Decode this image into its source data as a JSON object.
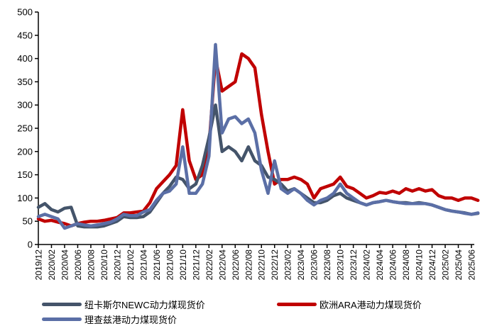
{
  "chart_data": {
    "type": "line",
    "title": "",
    "xlabel": "",
    "ylabel": "",
    "ylim": [
      0,
      500
    ],
    "yticks": [
      0,
      50,
      100,
      150,
      200,
      250,
      300,
      350,
      400,
      450,
      500
    ],
    "grid": false,
    "legend_placement": "bottom",
    "x": [
      "2019/12",
      "2020/01",
      "2020/02",
      "2020/03",
      "2020/04",
      "2020/05",
      "2020/06",
      "2020/07",
      "2020/08",
      "2020/09",
      "2020/10",
      "2020/11",
      "2020/12",
      "2021/01",
      "2021/02",
      "2021/03",
      "2021/04",
      "2021/05",
      "2021/06",
      "2021/07",
      "2021/08",
      "2021/09",
      "2021/10",
      "2021/11",
      "2021/12",
      "2022/01",
      "2022/02",
      "2022/03",
      "2022/04",
      "2022/05",
      "2022/06",
      "2022/07",
      "2022/08",
      "2022/09",
      "2022/10",
      "2022/11",
      "2022/12",
      "2023/01",
      "2023/02",
      "2023/03",
      "2023/04",
      "2023/05",
      "2023/06",
      "2023/07",
      "2023/08",
      "2023/09",
      "2023/10",
      "2023/11",
      "2023/12",
      "2024/01",
      "2024/02",
      "2024/03",
      "2024/04",
      "2024/05",
      "2024/06",
      "2024/07",
      "2024/08",
      "2024/09",
      "2024/10",
      "2024/11",
      "2024/12",
      "2025/01",
      "2025/02",
      "2025/03",
      "2025/04",
      "2025/05",
      "2025/06",
      "2025/07"
    ],
    "xtick_labels": [
      "2019/12",
      "2020/02",
      "2020/04",
      "2020/06",
      "2020/08",
      "2020/10",
      "2020/12",
      "2021/02",
      "2021/04",
      "2021/06",
      "2021/08",
      "2021/10",
      "2021/12",
      "2022/02",
      "2022/04",
      "2022/06",
      "2022/08",
      "2022/10",
      "2022/12",
      "2023/02",
      "2023/04",
      "2023/06",
      "2023/08",
      "2023/10",
      "2023/12",
      "2024/02",
      "2024/04",
      "2024/06",
      "2024/08",
      "2024/10",
      "2024/12",
      "2025/02",
      "2025/04",
      "2025/06"
    ],
    "series": [
      {
        "name": "纽卡斯尔NEWC动力煤现货价",
        "color": "#44546a",
        "values": [
          80,
          88,
          75,
          70,
          78,
          80,
          40,
          38,
          38,
          38,
          40,
          45,
          50,
          60,
          58,
          58,
          60,
          70,
          90,
          110,
          125,
          145,
          140,
          120,
          130,
          170,
          230,
          300,
          200,
          210,
          200,
          180,
          210,
          180,
          170,
          145,
          140,
          130,
          115,
          120,
          110,
          100,
          90,
          90,
          95,
          105,
          110,
          100,
          95,
          90,
          85,
          90,
          92,
          95,
          92,
          90,
          90,
          88,
          90,
          88,
          85,
          80,
          75,
          72,
          70,
          68,
          65,
          67
        ]
      },
      {
        "name": "欧洲ARA港动力煤现货价",
        "color": "#c00000",
        "values": [
          55,
          50,
          52,
          48,
          45,
          40,
          45,
          48,
          50,
          50,
          52,
          55,
          58,
          68,
          68,
          70,
          72,
          90,
          120,
          135,
          150,
          170,
          290,
          180,
          140,
          150,
          210,
          400,
          330,
          340,
          350,
          410,
          400,
          380,
          280,
          200,
          130,
          140,
          140,
          145,
          140,
          130,
          100,
          120,
          125,
          130,
          145,
          125,
          120,
          110,
          100,
          105,
          112,
          110,
          115,
          110,
          120,
          115,
          120,
          115,
          118,
          105,
          100,
          100,
          95,
          100,
          100,
          95
        ]
      },
      {
        "name": "理查兹港动力煤现货价",
        "color": "#5b6fa6",
        "values": [
          60,
          65,
          60,
          55,
          35,
          40,
          45,
          42,
          40,
          42,
          45,
          48,
          55,
          65,
          62,
          62,
          70,
          75,
          95,
          110,
          115,
          130,
          210,
          110,
          110,
          130,
          190,
          430,
          240,
          270,
          275,
          260,
          270,
          240,
          160,
          110,
          180,
          120,
          110,
          120,
          110,
          95,
          85,
          95,
          100,
          110,
          130,
          110,
          100,
          90,
          85,
          90,
          92,
          95,
          92,
          90,
          88,
          88,
          88,
          88,
          85,
          80,
          75,
          72,
          70,
          67,
          65,
          68
        ]
      }
    ]
  }
}
